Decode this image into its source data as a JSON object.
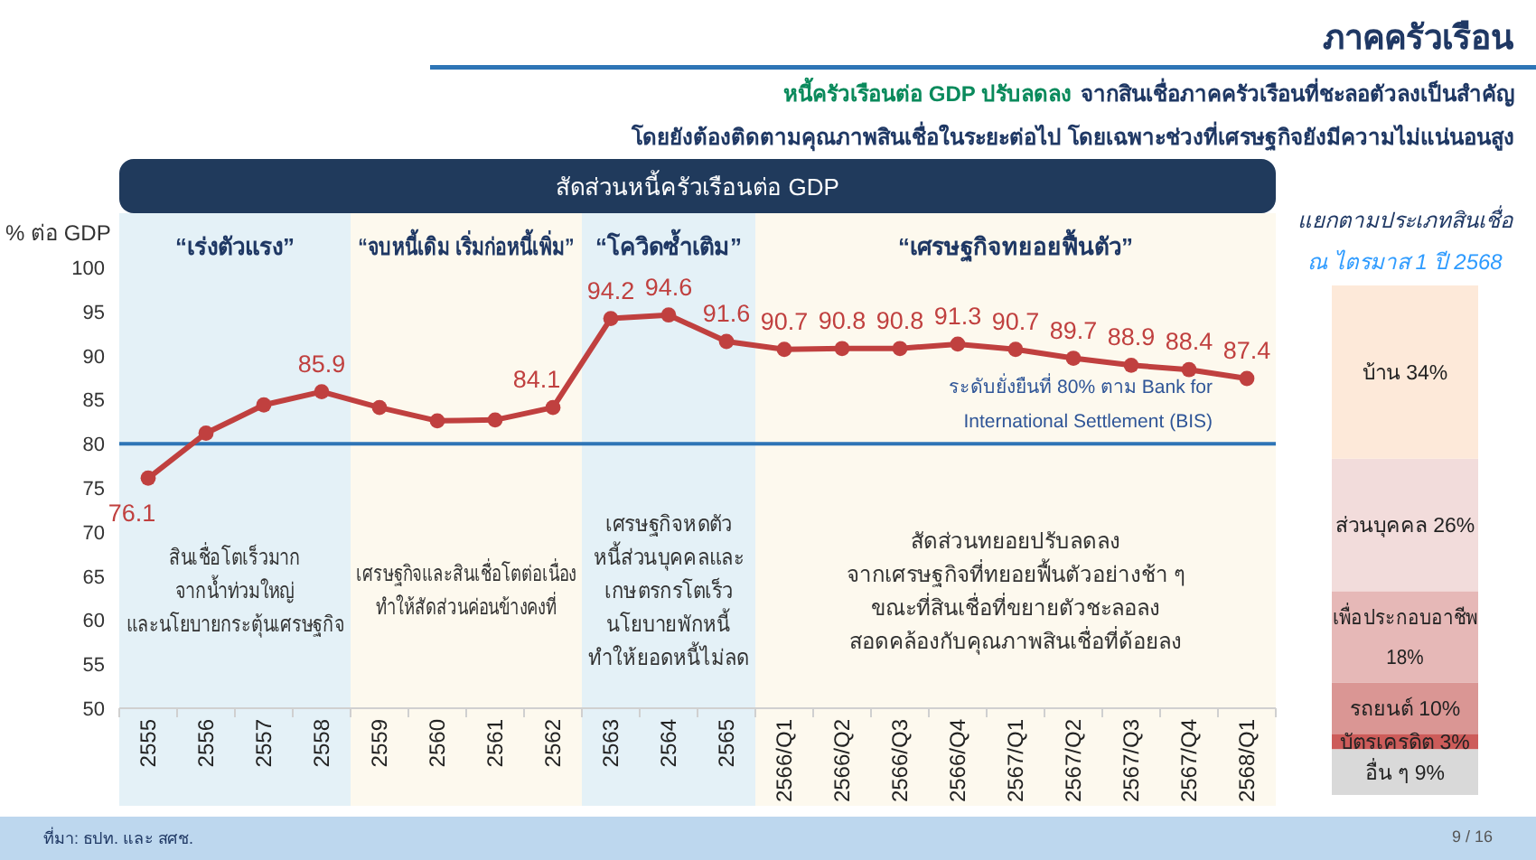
{
  "chart_data": [
    {
      "type": "other",
      "title": "ภาคครัวเรือน",
      "annotations": [
        "หนี้ครัวเรือนต่อ GDP ปรับลดลง",
        "จากสินเชื่อภาคครัวเรือนที่ชะลอตัวลงเป็นสำคัญ",
        "โดยยังต้องติดตามคุณภาพสินเชื่อในระยะต่อไป โดยเฉพาะช่วงที่เศรษฐกิจยังมีความไม่แน่นอนสูง",
        "ที่มา: ธปท. และ สศช.",
        "9 / 16"
      ]
    },
    {
      "type": "line",
      "title": "สัดส่วนหนี้ครัวเรือนต่อ GDP",
      "ylabel": "% ต่อ GDP",
      "categories": [
        "2555",
        "2556",
        "2557",
        "2558",
        "2559",
        "2560",
        "2561",
        "2562",
        "2563",
        "2564",
        "2565",
        "2566/Q1",
        "2566/Q2",
        "2566/Q3",
        "2566/Q4",
        "2567/Q1",
        "2567/Q2",
        "2567/Q3",
        "2567/Q4",
        "2568/Q1"
      ],
      "values": [
        76.1,
        81.2,
        84.4,
        85.9,
        84.1,
        82.6,
        82.7,
        84.1,
        94.2,
        94.6,
        91.6,
        90.7,
        90.8,
        90.8,
        91.3,
        90.7,
        89.7,
        88.9,
        88.4,
        87.4
      ],
      "value_labels": [
        "76.1",
        null,
        null,
        "85.9",
        null,
        null,
        null,
        "84.1",
        "94.2",
        "94.6",
        "91.6",
        "90.7",
        "90.8",
        "90.8",
        "91.3",
        "90.7",
        "89.7",
        "88.9",
        "88.4",
        "87.4"
      ],
      "color": "#c0403f",
      "marker": "circle",
      "ylim": [
        50,
        100
      ],
      "yticks": [
        50,
        55,
        60,
        65,
        70,
        75,
        80,
        85,
        90,
        95,
        100
      ],
      "bands": [
        {
          "axis": "x",
          "from": "2555",
          "to": "2558",
          "label": "“เร่งตัวแรง”",
          "color": "#e4f1f7"
        },
        {
          "axis": "x",
          "from": "2559",
          "to": "2562",
          "label": "“จบหนี้เดิม เริ่มก่อหนี้เพิ่ม”",
          "color": "#fdf9ee"
        },
        {
          "axis": "x",
          "from": "2563",
          "to": "2565",
          "label": "“โควิดซ้ำเติม”",
          "color": "#e4f1f7"
        },
        {
          "axis": "x",
          "from": "2566/Q1",
          "to": "2568/Q1",
          "label": "“เศรษฐกิจทยอยฟื้นตัว”",
          "color": "#fdf9ee"
        }
      ],
      "ref_lines": [
        {
          "axis": "y",
          "value": 80,
          "label": "ระดับยั่งยืนที่ 80% ตาม Bank for\nInternational Settlement (BIS)",
          "color": "#2e75b6"
        }
      ],
      "annotations": [
        "สินเชื่อโตเร็วมาก\nจากน้ำท่วมใหญ่\nและนโยบายกระตุ้นเศรษฐกิจ",
        "เศรษฐกิจและสินเชื่อโตต่อเนื่อง\nทำให้สัดส่วนค่อนข้างคงที่",
        "เศรษฐกิจหดตัว\nหนี้ส่วนบุคคลและ\nเกษตรกรโตเร็ว\nนโยบายพักหนี้\nทำให้ยอดหนี้ไม่ลด",
        "สัดส่วนทยอยปรับลดลง\nจากเศรษฐกิจที่ทยอยฟื้นตัวอย่างช้า ๆ\nขณะที่สินเชื่อที่ขยายตัวชะลอลง\nสอดคล้องกับคุณภาพสินเชื่อที่ด้อยลง"
      ]
    },
    {
      "type": "bar",
      "title": "แยกตามประเภทสินเชื่อ",
      "subtitle": "ณ ไตรมาส 1 ปี 2568",
      "categories": [
        null
      ],
      "stacked": true,
      "series": [
        {
          "name": "อื่น ๆ",
          "color": "#d9d9d9",
          "values": [
            9
          ],
          "value_labels": [
            "9%"
          ]
        },
        {
          "name": "บัตรเครดิต",
          "color": "#cd5c5a",
          "values": [
            3
          ],
          "value_labels": [
            "3%"
          ]
        },
        {
          "name": "รถยนต์",
          "color": "#da9694",
          "values": [
            10
          ],
          "value_labels": [
            "10%"
          ]
        },
        {
          "name": "เพื่อประกอบอาชีพ",
          "color": "#e6b8b7",
          "values": [
            18
          ],
          "value_labels": [
            "18%"
          ]
        },
        {
          "name": "ส่วนบุคคล",
          "color": "#f2dcdb",
          "values": [
            26
          ],
          "value_labels": [
            "26%"
          ]
        },
        {
          "name": "บ้าน",
          "color": "#fde9d9",
          "values": [
            34
          ],
          "value_labels": [
            "34%"
          ]
        }
      ]
    }
  ]
}
